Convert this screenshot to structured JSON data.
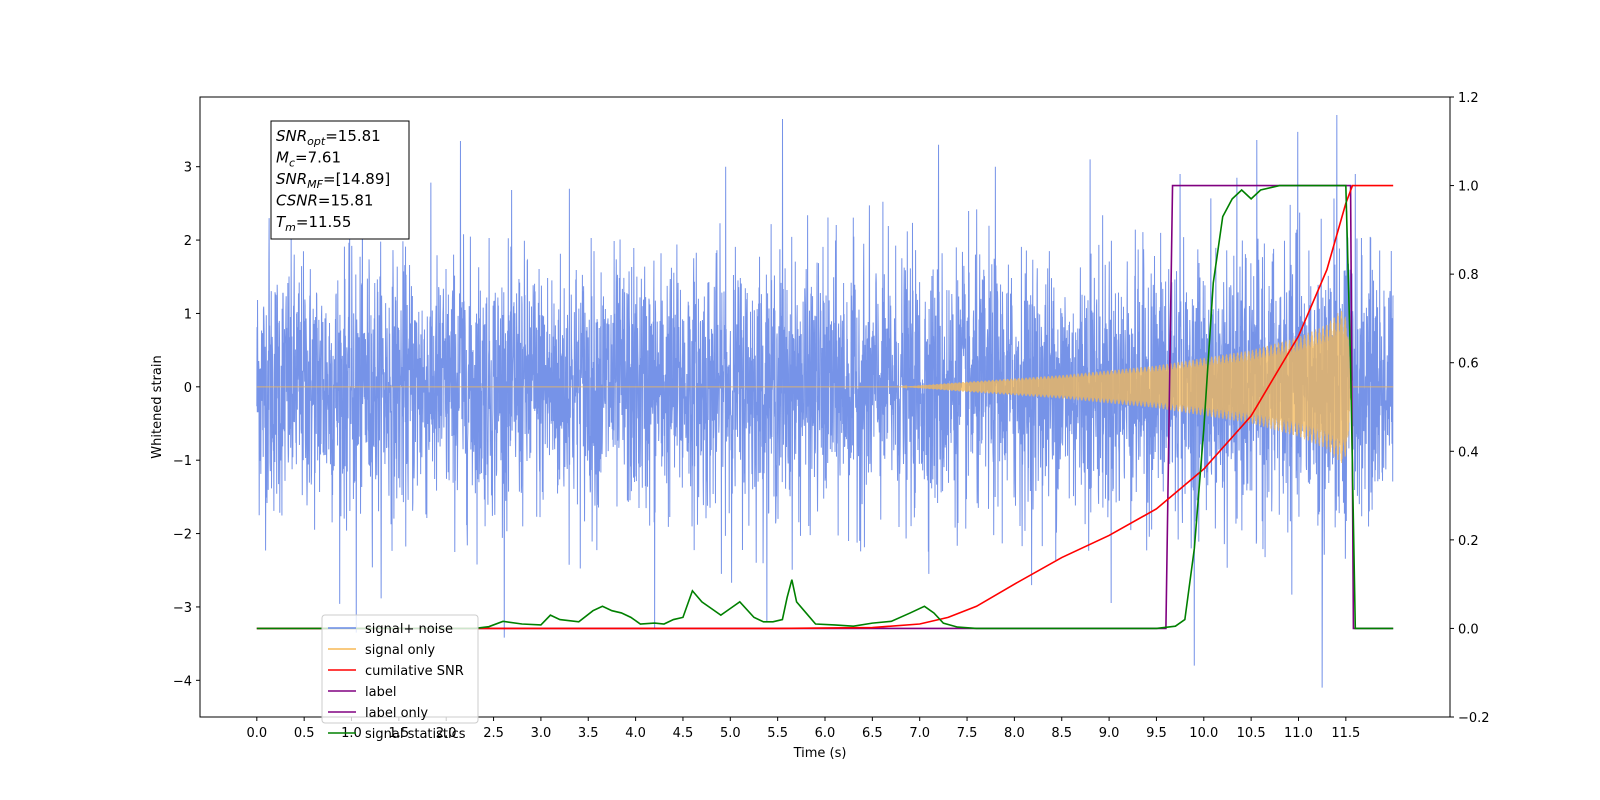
{
  "chart_data": {
    "type": "line",
    "xlabel": "Time (s)",
    "ylabel": "Whitened strain",
    "xlim": [
      -0.6,
      12.6
    ],
    "ylim": [
      -4.5,
      3.95
    ],
    "ylim_right": [
      -0.2,
      1.2
    ],
    "x_ticks": [
      0.0,
      0.5,
      1.0,
      1.5,
      2.0,
      2.5,
      3.0,
      3.5,
      4.0,
      4.5,
      5.0,
      5.5,
      6.0,
      6.5,
      7.0,
      7.5,
      8.0,
      8.5,
      9.0,
      9.5,
      10.0,
      10.5,
      11.0,
      11.5
    ],
    "x_tick_labels": [
      "0.0",
      "0.5",
      "1.0",
      "1.5",
      "2.0",
      "2.5",
      "3.0",
      "3.5",
      "4.0",
      "4.5",
      "5.0",
      "5.5",
      "6.0",
      "6.5",
      "7.0",
      "7.5",
      "8.0",
      "8.5",
      "9.0",
      "9.5",
      "10.0",
      "10.5",
      "11.0",
      "11.5"
    ],
    "y_ticks": [
      -4,
      -3,
      -2,
      -1,
      0,
      1,
      2,
      3
    ],
    "y_tick_labels": [
      "−4",
      "−3",
      "−2",
      "−1",
      "0",
      "1",
      "2",
      "3"
    ],
    "y_right_ticks": [
      -0.2,
      0.0,
      0.2,
      0.4,
      0.6,
      0.8,
      1.0,
      1.2
    ],
    "y_right_tick_labels": [
      "−0.2",
      "0.0",
      "0.2",
      "0.4",
      "0.6",
      "0.8",
      "1.0",
      "1.2"
    ],
    "grid": false,
    "legend_position": "lower-left",
    "info_box": {
      "lines": [
        {
          "sym": "SNR",
          "sub": "opt",
          "value": "=15.81"
        },
        {
          "sym": "M",
          "sub": "c",
          "value": "=7.61"
        },
        {
          "sym": "SNR",
          "sub": "MF",
          "value": "=[14.89]"
        },
        {
          "sym": "CSNR",
          "sub": "",
          "value": "=15.81"
        },
        {
          "sym": "T",
          "sub": "m",
          "value": "=11.55"
        }
      ]
    },
    "series": [
      {
        "name": "signal+ noise",
        "axis": "left",
        "color": "#6a8ae6",
        "x_range": [
          0.0,
          12.0
        ],
        "noise_sigma": 0.85,
        "peaks": [
          [
            0.13,
            2.3
          ],
          [
            1.05,
            -3.35
          ],
          [
            2.15,
            3.35
          ],
          [
            3.3,
            2.7
          ],
          [
            4.2,
            -3.3
          ],
          [
            4.95,
            3.0
          ],
          [
            5.55,
            3.65
          ],
          [
            7.2,
            3.3
          ],
          [
            7.8,
            3.0
          ],
          [
            8.8,
            3.1
          ],
          [
            9.75,
            2.9
          ],
          [
            9.9,
            -3.8
          ],
          [
            10.35,
            2.85
          ],
          [
            11.25,
            -4.1
          ],
          [
            11.6,
            2.9
          ]
        ]
      },
      {
        "name": "signal only",
        "axis": "left",
        "color": "#f7b955",
        "x_range": [
          0.0,
          12.0
        ],
        "amplitude_envelope": [
          [
            0.0,
            0.0
          ],
          [
            6.8,
            0.0
          ],
          [
            7.5,
            0.07
          ],
          [
            8.5,
            0.16
          ],
          [
            9.5,
            0.29
          ],
          [
            10.5,
            0.5
          ],
          [
            11.0,
            0.68
          ],
          [
            11.3,
            0.85
          ],
          [
            11.45,
            1.05
          ],
          [
            11.52,
            0.9
          ],
          [
            11.55,
            0.0
          ],
          [
            12.0,
            0.0
          ]
        ]
      },
      {
        "name": "cumilative SNR",
        "axis": "right",
        "color": "#ff0000",
        "x": [
          0.0,
          5.5,
          6.5,
          7.0,
          7.3,
          7.6,
          8.0,
          8.5,
          9.0,
          9.5,
          10.0,
          10.5,
          11.0,
          11.3,
          11.5,
          11.57,
          12.0
        ],
        "values": [
          0.0,
          0.0,
          0.002,
          0.01,
          0.025,
          0.05,
          0.1,
          0.16,
          0.21,
          0.27,
          0.36,
          0.48,
          0.66,
          0.81,
          0.96,
          1.0,
          1.0
        ]
      },
      {
        "name": "label",
        "axis": "right",
        "color": "#800080",
        "x": [
          0.0,
          9.6,
          9.67,
          11.55,
          11.58,
          12.0
        ],
        "values": [
          0.0,
          0.0,
          1.0,
          1.0,
          0.0,
          0.0
        ]
      },
      {
        "name": "label only",
        "axis": "right",
        "color": "#800080",
        "x": [],
        "values": []
      },
      {
        "name": "signal statistics",
        "axis": "right",
        "color": "#008000",
        "x": [
          0.0,
          2.3,
          2.45,
          2.6,
          2.8,
          3.0,
          3.1,
          3.2,
          3.4,
          3.55,
          3.65,
          3.75,
          3.85,
          3.95,
          4.05,
          4.2,
          4.3,
          4.4,
          4.5,
          4.6,
          4.7,
          4.8,
          4.9,
          5.0,
          5.1,
          5.25,
          5.35,
          5.45,
          5.55,
          5.6,
          5.65,
          5.7,
          5.8,
          5.9,
          6.1,
          6.3,
          6.5,
          6.7,
          6.9,
          7.05,
          7.15,
          7.25,
          7.4,
          7.6,
          9.5,
          9.7,
          9.8,
          9.9,
          10.0,
          10.1,
          10.2,
          10.3,
          10.4,
          10.5,
          10.6,
          10.8,
          11.5,
          11.55,
          11.6,
          12.0
        ],
        "values": [
          0.0,
          0.0,
          0.004,
          0.016,
          0.01,
          0.008,
          0.03,
          0.02,
          0.015,
          0.04,
          0.05,
          0.04,
          0.035,
          0.025,
          0.01,
          0.012,
          0.01,
          0.02,
          0.025,
          0.085,
          0.06,
          0.045,
          0.03,
          0.045,
          0.06,
          0.025,
          0.015,
          0.015,
          0.02,
          0.07,
          0.11,
          0.06,
          0.035,
          0.01,
          0.008,
          0.005,
          0.012,
          0.016,
          0.035,
          0.05,
          0.035,
          0.012,
          0.003,
          0.0,
          0.0,
          0.005,
          0.02,
          0.18,
          0.45,
          0.78,
          0.93,
          0.97,
          0.99,
          0.97,
          0.99,
          1.0,
          1.0,
          0.6,
          0.0,
          0.0
        ]
      }
    ]
  }
}
